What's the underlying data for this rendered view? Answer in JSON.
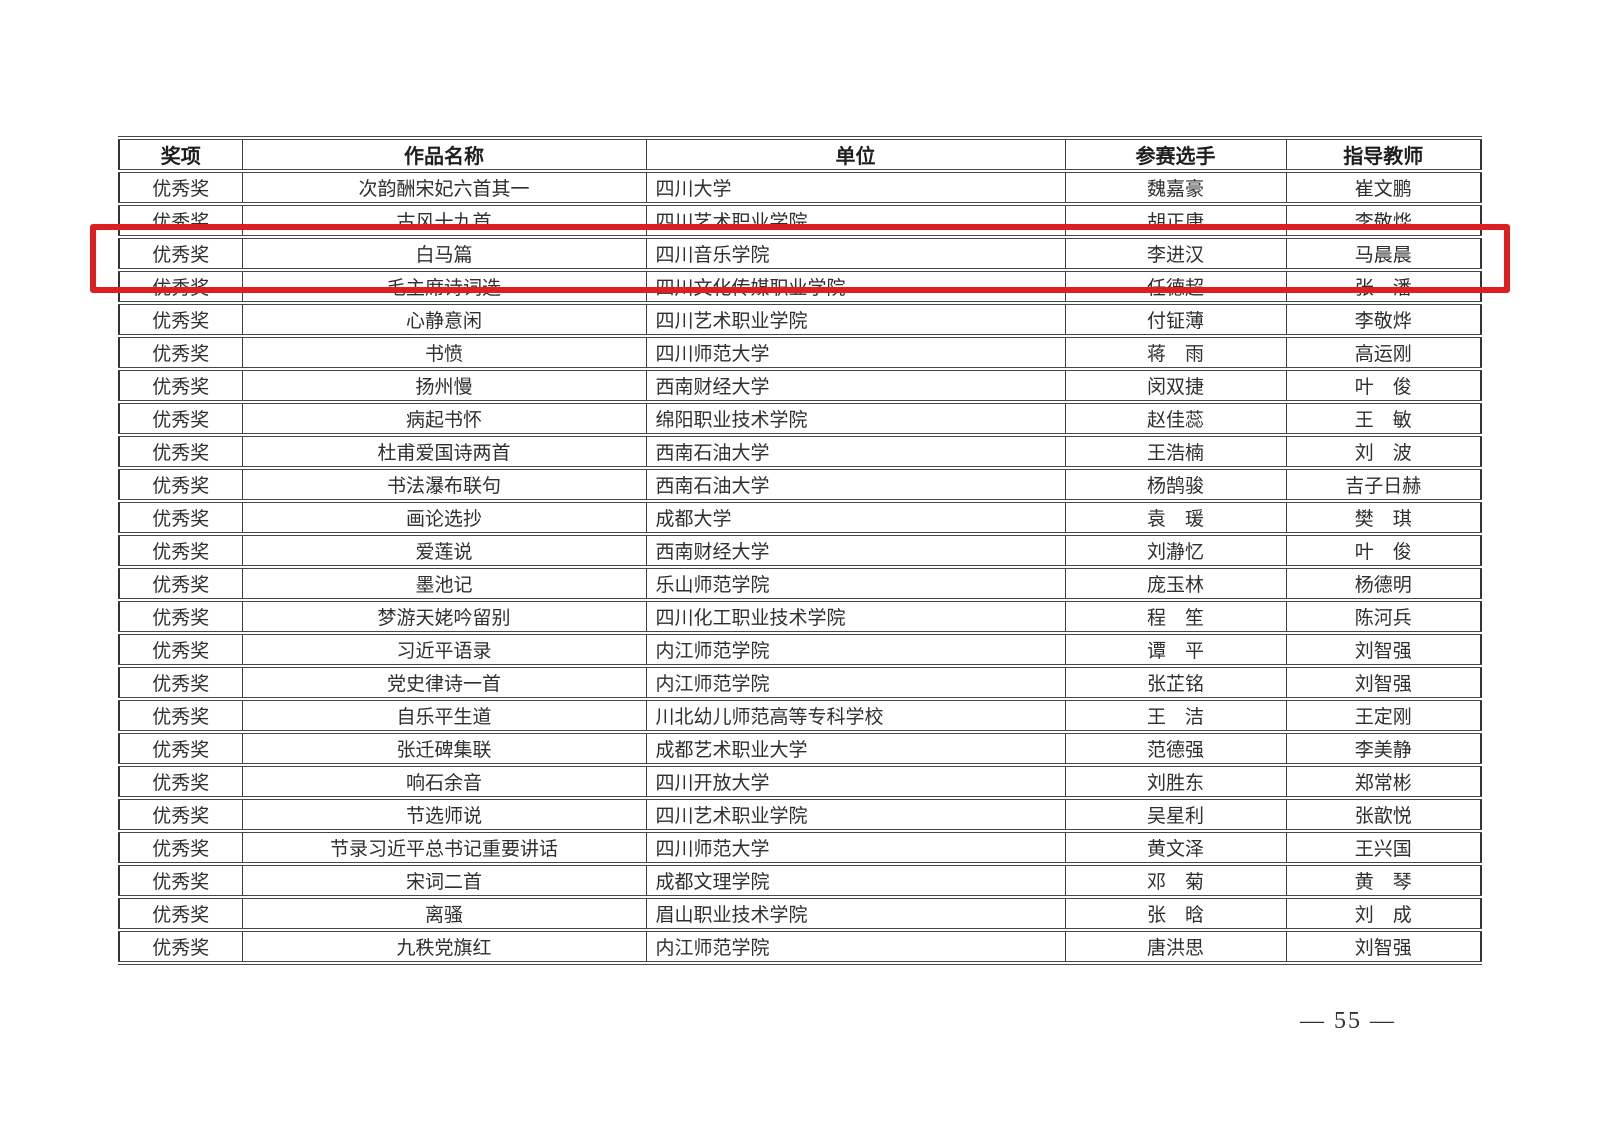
{
  "page": {
    "number": "— 55 —"
  },
  "table": {
    "headers": [
      "奖项",
      "作品名称",
      "单位",
      "参赛选手",
      "指导教师"
    ],
    "rows": [
      {
        "award": "优秀奖",
        "work": "次韵酬宋妃六首其一",
        "unit": "四川大学",
        "contestant": "魏嘉豪",
        "teacher": "崔文鹏"
      },
      {
        "award": "优秀奖",
        "work": "古风十九首",
        "unit": "四川艺术职业学院",
        "contestant": "胡正康",
        "teacher": "李敬烨"
      },
      {
        "award": "优秀奖",
        "work": "白马篇",
        "unit": "四川音乐学院",
        "contestant": "李进汉",
        "teacher": "马晨晨"
      },
      {
        "award": "优秀奖",
        "work": "毛主席诗词选",
        "unit": "四川文化传媒职业学院",
        "contestant": "任德超",
        "teacher": "张　潘"
      },
      {
        "award": "优秀奖",
        "work": "心静意闲",
        "unit": "四川艺术职业学院",
        "contestant": "付钲薄",
        "teacher": "李敬烨"
      },
      {
        "award": "优秀奖",
        "work": "书愤",
        "unit": "四川师范大学",
        "contestant": "蒋　雨",
        "teacher": "高运刚"
      },
      {
        "award": "优秀奖",
        "work": "扬州慢",
        "unit": "西南财经大学",
        "contestant": "闵双捷",
        "teacher": "叶　俊"
      },
      {
        "award": "优秀奖",
        "work": "病起书怀",
        "unit": "绵阳职业技术学院",
        "contestant": "赵佳蕊",
        "teacher": "王　敏"
      },
      {
        "award": "优秀奖",
        "work": "杜甫爱国诗两首",
        "unit": "西南石油大学",
        "contestant": "王浩楠",
        "teacher": "刘　波"
      },
      {
        "award": "优秀奖",
        "work": "书法瀑布联句",
        "unit": "西南石油大学",
        "contestant": "杨鹄骏",
        "teacher": "吉子日赫"
      },
      {
        "award": "优秀奖",
        "work": "画论选抄",
        "unit": "成都大学",
        "contestant": "袁　瑗",
        "teacher": "樊　琪"
      },
      {
        "award": "优秀奖",
        "work": "爱莲说",
        "unit": "西南财经大学",
        "contestant": "刘瀞忆",
        "teacher": "叶　俊"
      },
      {
        "award": "优秀奖",
        "work": "墨池记",
        "unit": "乐山师范学院",
        "contestant": "庞玉林",
        "teacher": "杨德明"
      },
      {
        "award": "优秀奖",
        "work": "梦游天姥吟留别",
        "unit": "四川化工职业技术学院",
        "contestant": "程　笙",
        "teacher": "陈河兵"
      },
      {
        "award": "优秀奖",
        "work": "习近平语录",
        "unit": "内江师范学院",
        "contestant": "谭　平",
        "teacher": "刘智强"
      },
      {
        "award": "优秀奖",
        "work": "党史律诗一首",
        "unit": "内江师范学院",
        "contestant": "张芷铭",
        "teacher": "刘智强"
      },
      {
        "award": "优秀奖",
        "work": "自乐平生道",
        "unit": "川北幼儿师范高等专科学校",
        "contestant": "王　洁",
        "teacher": "王定刚"
      },
      {
        "award": "优秀奖",
        "work": "张迁碑集联",
        "unit": "成都艺术职业大学",
        "contestant": "范德强",
        "teacher": "李美静"
      },
      {
        "award": "优秀奖",
        "work": "响石余音",
        "unit": "四川开放大学",
        "contestant": "刘胜东",
        "teacher": "郑常彬"
      },
      {
        "award": "优秀奖",
        "work": "节选师说",
        "unit": "四川艺术职业学院",
        "contestant": "吴星利",
        "teacher": "张歆悦"
      },
      {
        "award": "优秀奖",
        "work": "节录习近平总书记重要讲话",
        "unit": "四川师范大学",
        "contestant": "黄文泽",
        "teacher": "王兴国"
      },
      {
        "award": "优秀奖",
        "work": "宋词二首",
        "unit": "成都文理学院",
        "contestant": "邓　菊",
        "teacher": "黄　琴"
      },
      {
        "award": "优秀奖",
        "work": "离骚",
        "unit": "眉山职业技术学院",
        "contestant": "张　晗",
        "teacher": "刘　成"
      },
      {
        "award": "优秀奖",
        "work": "九秩党旗红",
        "unit": "内江师范学院",
        "contestant": "唐洪思",
        "teacher": "刘智强"
      }
    ]
  },
  "highlight": {
    "row_index": 2,
    "border_color": "#dd1f1f"
  }
}
